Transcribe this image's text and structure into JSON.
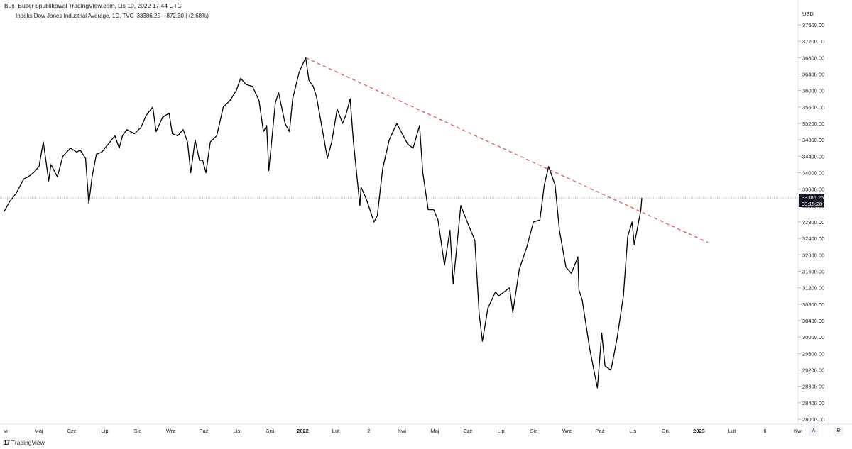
{
  "publisher_line": "Bux_Butler opublikował TradingView.com, Lis 10, 2022 17:44 UTC",
  "legend": {
    "symbol": "Indeks Dow Jones Industrial Average, 1D, TVC",
    "price": "33386.25",
    "change": "+872.30 (+2.68%)"
  },
  "currency": "USD",
  "last_price_badge": {
    "price": "33386.25",
    "countdown": "03:15:28",
    "bg": "#131722",
    "fg": "#ffffff"
  },
  "brand_label": "TradingView",
  "brand_logo": "17",
  "scale_buttons": [
    "A",
    "B"
  ],
  "colors": {
    "price_line": "#000000",
    "trendline": "#e04a4a",
    "grid_text": "#131722",
    "price_level": "#9598a1"
  },
  "chart_data": {
    "type": "line",
    "yaxis": {
      "label": "USD",
      "range": [
        27800,
        37800
      ],
      "ticks": [
        28000,
        28400,
        28800,
        29200,
        29600,
        30000,
        30400,
        30800,
        31200,
        31600,
        32000,
        32400,
        32800,
        33200,
        33600,
        34000,
        34400,
        34800,
        35200,
        35600,
        36000,
        36400,
        36800,
        37200,
        37600
      ],
      "tick_labels": [
        "28000.00",
        "28400.00",
        "28800.00",
        "29200.00",
        "29600.00",
        "30000.00",
        "30400.00",
        "30800.00",
        "31200.00",
        "31600.00",
        "32000.00",
        "32400.00",
        "32800.00",
        "33200.00",
        "33600.00",
        "34000.00",
        "34400.00",
        "34800.00",
        "35200.00",
        "35600.00",
        "36000.00",
        "36400.00",
        "36800.00",
        "37200.00",
        "37600.00"
      ]
    },
    "xaxis": {
      "tick_labels": [
        "vi",
        "Maj",
        "Cze",
        "Lip",
        "Sie",
        "Wrz",
        "Paź",
        "Lis",
        "Gru",
        "2022",
        "Lut",
        "2",
        "Kwi",
        "Maj",
        "Cze",
        "Lip",
        "Sie",
        "Wrz",
        "Paź",
        "Lis",
        "Gru",
        "2023",
        "Lut",
        "6",
        "Kwi"
      ],
      "bold_labels": [
        "2022",
        "2023"
      ]
    },
    "grid": false,
    "current_price_level": 33386.25,
    "trendline": {
      "style": "dashed",
      "start": {
        "date": "2022-01-04",
        "value": 36799
      },
      "end": {
        "date": "2023-01-10",
        "value": 32300
      }
    },
    "series": [
      {
        "dates": [
          "2021-04-01",
          "2021-04-06",
          "2021-04-12",
          "2021-04-19",
          "2021-04-23",
          "2021-04-28",
          "2021-05-03",
          "2021-05-07",
          "2021-05-12",
          "2021-05-14",
          "2021-05-20",
          "2021-05-25",
          "2021-06-01",
          "2021-06-07",
          "2021-06-10",
          "2021-06-15",
          "2021-06-18",
          "2021-06-21",
          "2021-06-25",
          "2021-06-30",
          "2021-07-06",
          "2021-07-12",
          "2021-07-16",
          "2021-07-19",
          "2021-07-23",
          "2021-07-30",
          "2021-08-05",
          "2021-08-10",
          "2021-08-16",
          "2021-08-19",
          "2021-08-25",
          "2021-08-31",
          "2021-09-03",
          "2021-09-08",
          "2021-09-13",
          "2021-09-17",
          "2021-09-20",
          "2021-09-24",
          "2021-09-28",
          "2021-10-01",
          "2021-10-04",
          "2021-10-08",
          "2021-10-14",
          "2021-10-20",
          "2021-10-26",
          "2021-11-01",
          "2021-11-05",
          "2021-11-10",
          "2021-11-16",
          "2021-11-22",
          "2021-11-26",
          "2021-11-29",
          "2021-12-01",
          "2021-12-03",
          "2021-12-07",
          "2021-12-10",
          "2021-12-16",
          "2021-12-20",
          "2021-12-23",
          "2021-12-29",
          "2022-01-04",
          "2022-01-07",
          "2022-01-11",
          "2022-01-14",
          "2022-01-19",
          "2022-01-24",
          "2022-01-28",
          "2022-02-02",
          "2022-02-07",
          "2022-02-10",
          "2022-02-14",
          "2022-02-17",
          "2022-02-23",
          "2022-02-24",
          "2022-03-01",
          "2022-03-08",
          "2022-03-11",
          "2022-03-16",
          "2022-03-22",
          "2022-03-29",
          "2022-04-04",
          "2022-04-08",
          "2022-04-13",
          "2022-04-19",
          "2022-04-22",
          "2022-04-27",
          "2022-05-02",
          "2022-05-06",
          "2022-05-12",
          "2022-05-17",
          "2022-05-20",
          "2022-05-27",
          "2022-06-02",
          "2022-06-09",
          "2022-06-13",
          "2022-06-16",
          "2022-06-21",
          "2022-06-28",
          "2022-07-01",
          "2022-07-06",
          "2022-07-11",
          "2022-07-14",
          "2022-07-20",
          "2022-07-27",
          "2022-08-02",
          "2022-08-08",
          "2022-08-12",
          "2022-08-16",
          "2022-08-22",
          "2022-08-26",
          "2022-09-01",
          "2022-09-06",
          "2022-09-12",
          "2022-09-13",
          "2022-09-16",
          "2022-09-23",
          "2022-09-30",
          "2022-10-04",
          "2022-10-07",
          "2022-10-12",
          "2022-10-13",
          "2022-10-18",
          "2022-10-24",
          "2022-10-28",
          "2022-11-01",
          "2022-11-03",
          "2022-11-07",
          "2022-11-09",
          "2022-11-10"
        ],
        "values": [
          33060,
          33300,
          33500,
          33850,
          33900,
          34000,
          34150,
          34750,
          33800,
          34200,
          33900,
          34400,
          34600,
          34500,
          34550,
          34350,
          33250,
          33900,
          34450,
          34500,
          34700,
          34900,
          34600,
          34900,
          35050,
          34950,
          35100,
          35400,
          35600,
          35000,
          35350,
          35450,
          34950,
          34900,
          35050,
          34750,
          34000,
          34800,
          34300,
          34300,
          34000,
          34750,
          34900,
          35600,
          35750,
          36000,
          36300,
          36150,
          36100,
          35750,
          35000,
          35150,
          34050,
          34600,
          35700,
          35950,
          35200,
          35000,
          35800,
          36450,
          36800,
          36250,
          36100,
          35850,
          35100,
          34350,
          34750,
          35550,
          35200,
          35400,
          35800,
          34750,
          33200,
          33650,
          33350,
          32800,
          32950,
          34100,
          34800,
          35200,
          34900,
          34700,
          34600,
          35150,
          34000,
          33100,
          33100,
          32850,
          31750,
          32600,
          31300,
          33200,
          32800,
          32350,
          30550,
          29900,
          30700,
          31100,
          31000,
          31100,
          31200,
          30600,
          31650,
          32200,
          32800,
          32850,
          33700,
          34150,
          33700,
          32600,
          31700,
          31550,
          31950,
          31150,
          30900,
          29700,
          28760,
          30100,
          29300,
          29200,
          29250,
          29950,
          31000,
          32450,
          32800,
          32250,
          32800,
          33080,
          33386
        ]
      }
    ]
  }
}
